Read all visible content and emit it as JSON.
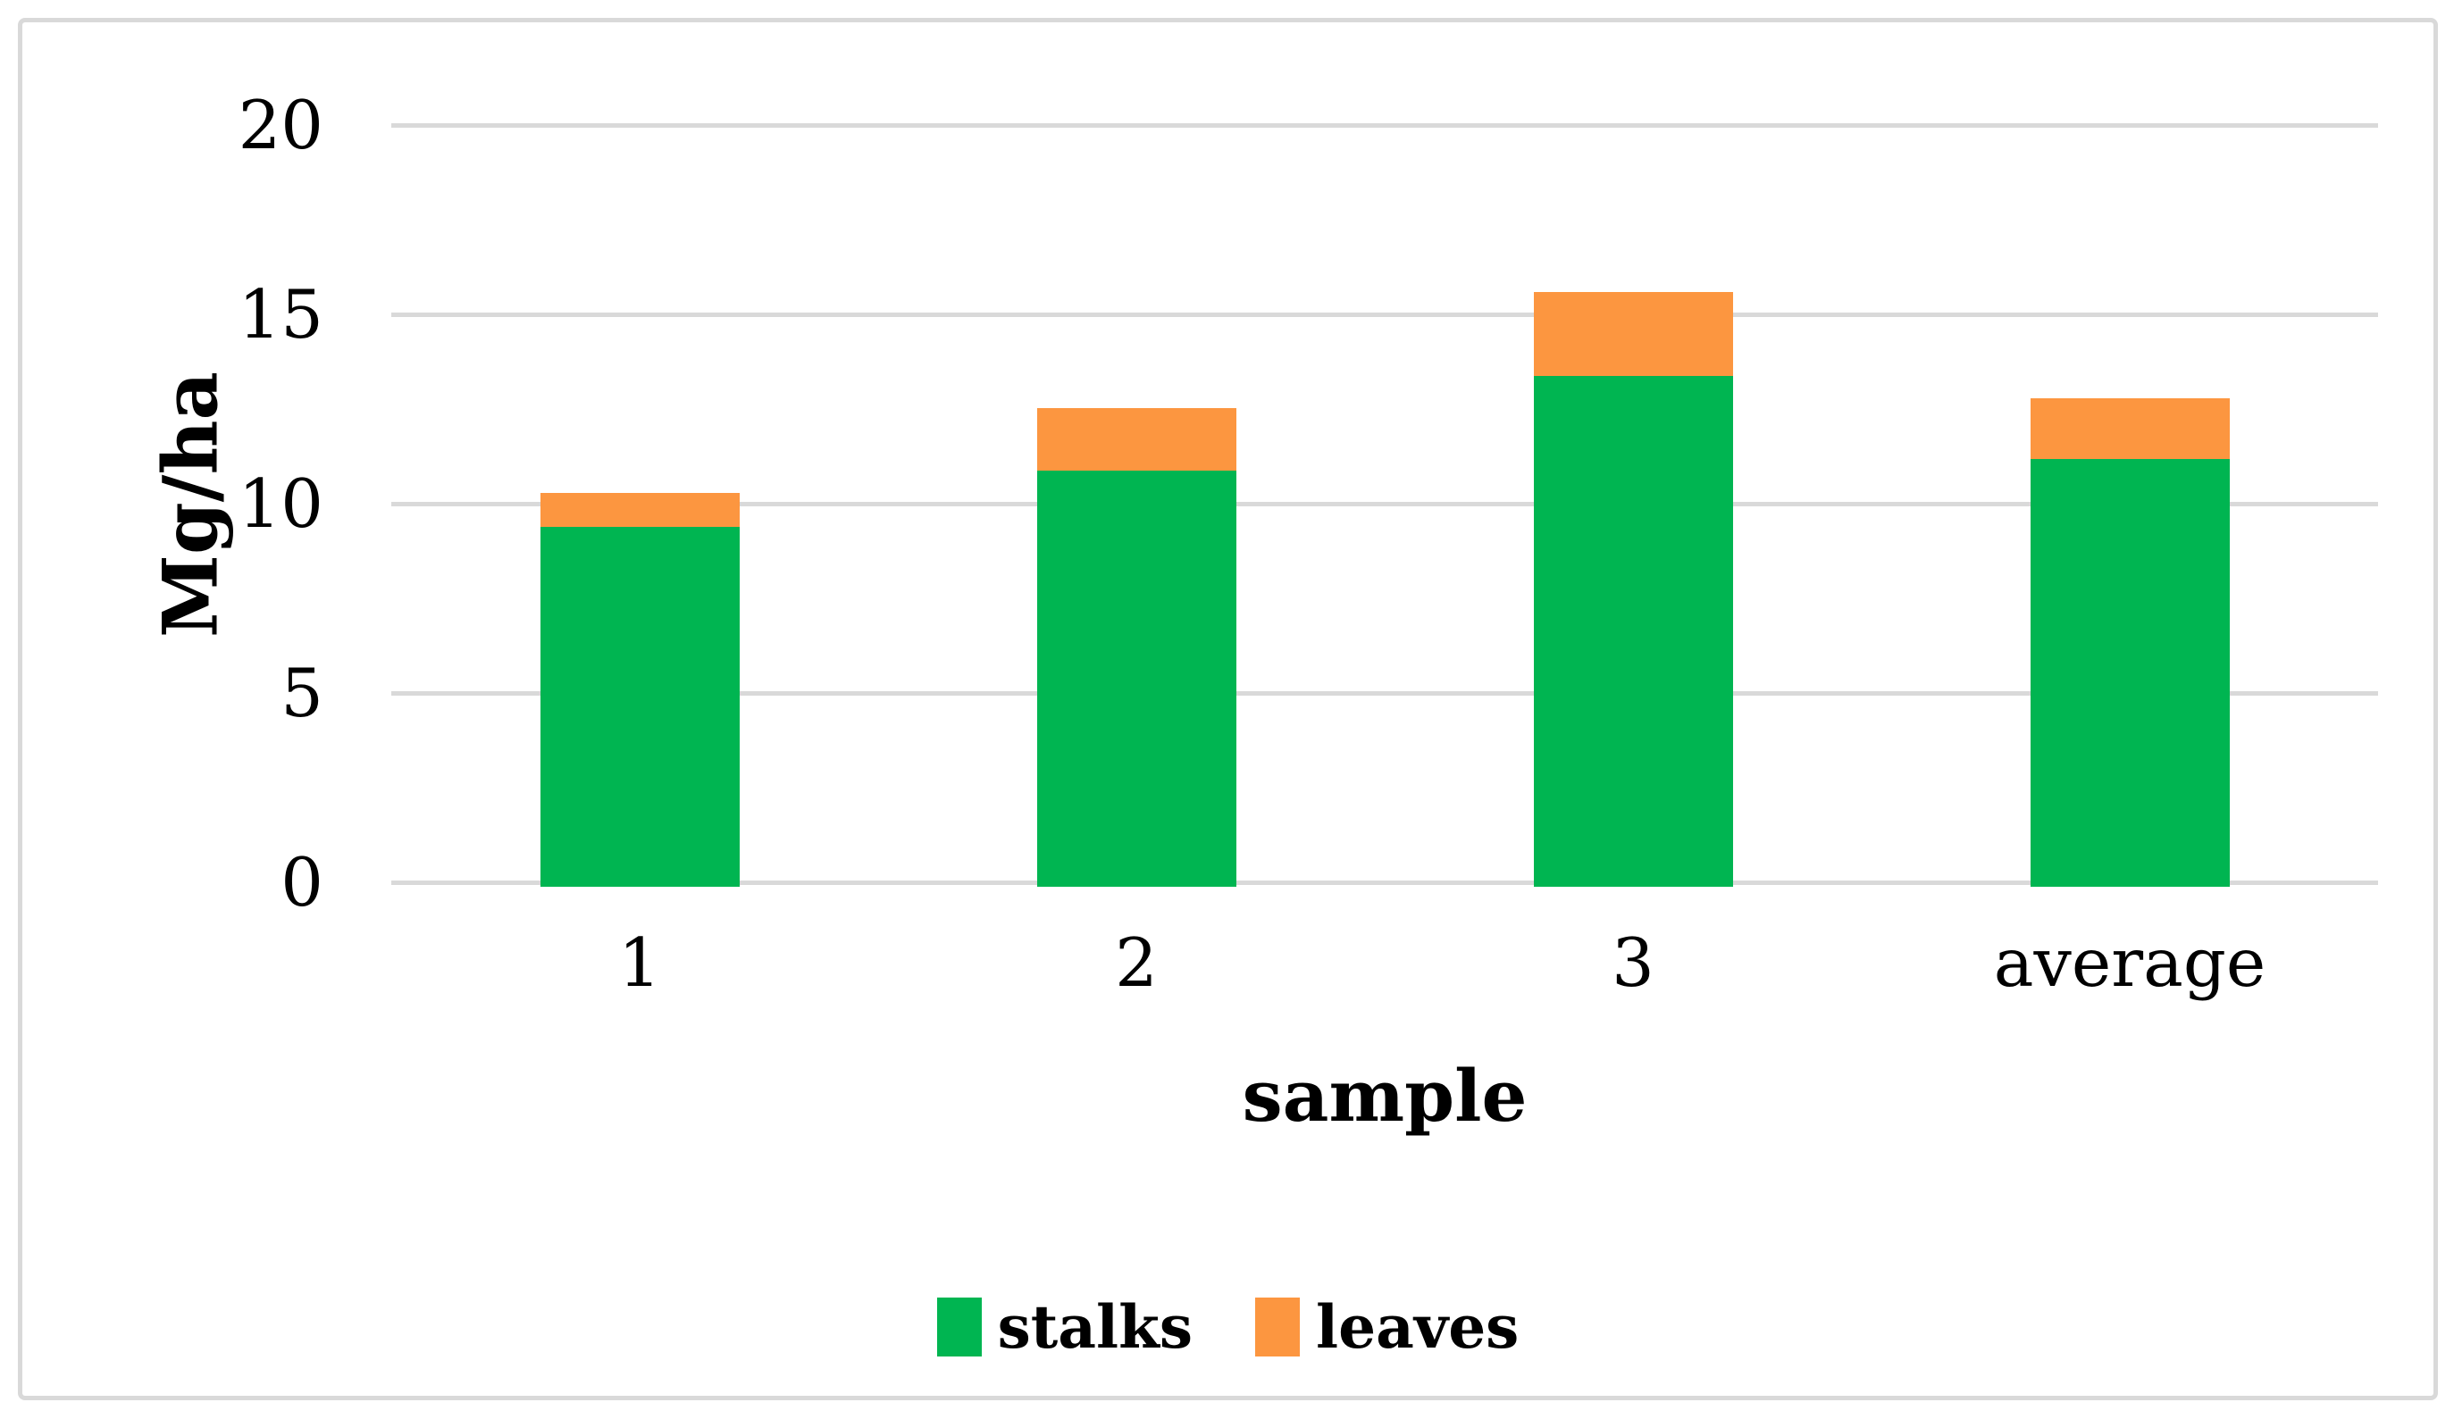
{
  "chart_data": {
    "type": "bar",
    "stacked": true,
    "title": "",
    "xlabel": "sample",
    "ylabel": "Mg/ha",
    "categories": [
      "1",
      "2",
      "3",
      "average"
    ],
    "series": [
      {
        "name": "stalks",
        "color": "#00B551",
        "values": [
          9.5,
          11.0,
          13.5,
          11.3
        ]
      },
      {
        "name": "leaves",
        "color": "#FC9640",
        "values": [
          0.9,
          1.65,
          2.2,
          1.6
        ]
      }
    ],
    "totals": [
      10.4,
      12.65,
      15.7,
      12.9
    ],
    "yticks": [
      0,
      5,
      10,
      15,
      20
    ],
    "ylim": [
      0,
      20
    ],
    "grid": true,
    "legend_position": "bottom",
    "legend": [
      "stalks",
      "leaves"
    ]
  },
  "colors": {
    "gridline": "#D9D9D9",
    "frame_border": "#D9D9D9",
    "text": "#000000",
    "background": "#FFFFFF"
  }
}
